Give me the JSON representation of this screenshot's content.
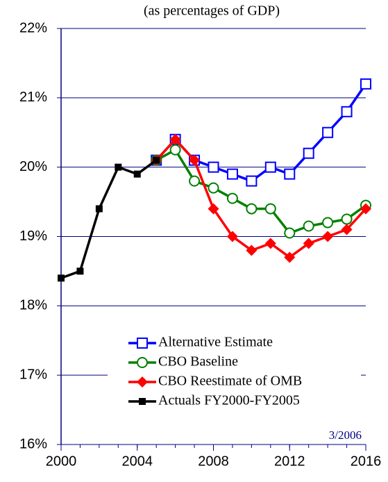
{
  "chart_data": {
    "type": "line",
    "title": "(as percentages of GDP)",
    "annotation": "3/2006",
    "x": [
      2000,
      2001,
      2002,
      2003,
      2004,
      2005,
      2006,
      2007,
      2008,
      2009,
      2010,
      2011,
      2012,
      2013,
      2014,
      2015,
      2016
    ],
    "xlim": [
      2000,
      2016
    ],
    "xticks": [
      2000,
      2004,
      2008,
      2012,
      2016
    ],
    "ylim": [
      16,
      22
    ],
    "yticks": [
      {
        "value": 16,
        "label": "16%"
      },
      {
        "value": 17,
        "label": "17%"
      },
      {
        "value": 18,
        "label": "18%"
      },
      {
        "value": 19,
        "label": "19%"
      },
      {
        "value": 20,
        "label": "20%"
      },
      {
        "value": 21,
        "label": "21%"
      },
      {
        "value": 22,
        "label": "22%"
      }
    ],
    "grid": true,
    "legend": "lower center",
    "series": [
      {
        "name": "Alternative Estimate",
        "color": "#0000ff",
        "marker": "open-square",
        "values": [
          null,
          null,
          null,
          null,
          null,
          20.1,
          20.4,
          20.1,
          20.0,
          19.9,
          19.8,
          20.0,
          19.9,
          20.2,
          20.5,
          20.8,
          21.2
        ]
      },
      {
        "name": "CBO Baseline",
        "color": "#008000",
        "marker": "open-circle",
        "values": [
          null,
          null,
          null,
          null,
          null,
          20.1,
          20.25,
          19.8,
          19.7,
          19.55,
          19.4,
          19.4,
          19.05,
          19.15,
          19.2,
          19.25,
          19.45
        ]
      },
      {
        "name": "CBO Reestimate of OMB",
        "color": "#ff0000",
        "marker": "diamond",
        "values": [
          null,
          null,
          null,
          null,
          null,
          20.1,
          20.4,
          20.1,
          19.4,
          19.0,
          18.8,
          18.9,
          18.7,
          18.9,
          19.0,
          19.1,
          19.4
        ]
      },
      {
        "name": "Actuals FY2000-FY2005",
        "color": "#000000",
        "marker": "square",
        "values": [
          18.4,
          18.5,
          19.4,
          20.0,
          19.9,
          20.1,
          null,
          null,
          null,
          null,
          null,
          null,
          null,
          null,
          null,
          null,
          null
        ]
      }
    ]
  }
}
